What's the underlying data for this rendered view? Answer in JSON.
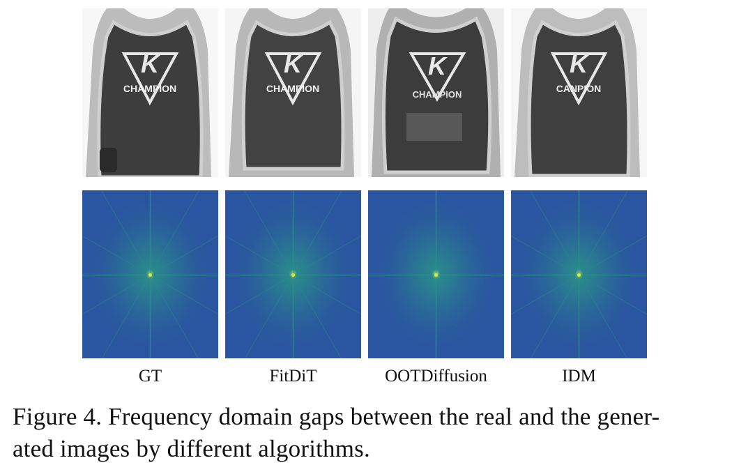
{
  "figure": {
    "panels": [
      {
        "label": "GT",
        "shirt_text": "CHAMPION"
      },
      {
        "label": "FitDiT",
        "shirt_text": "CHAMPION"
      },
      {
        "label": "OOTDiffusion",
        "shirt_text": "CHAMPION"
      },
      {
        "label": "IDM",
        "shirt_text": "CANPION"
      }
    ],
    "caption_line1": "Figure 4. Frequency domain gaps between the real and the gener-",
    "caption_line2": "ated images by different algorithms."
  },
  "colors": {
    "spectrum_bg": "#2a55a0",
    "spectrum_mid": "#2a8f8a",
    "spectrum_hot": "#d6e84a",
    "shirt": "#3a3a3a",
    "skin": "#bdbdbd"
  }
}
